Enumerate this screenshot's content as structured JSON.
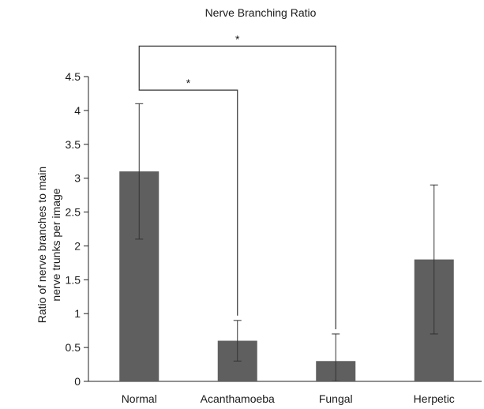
{
  "chart_data": {
    "type": "bar",
    "title": "Nerve Branching Ratio",
    "ylabel_lines": [
      "Ratio of nerve branches to main",
      "nerve trunks per image"
    ],
    "xlabel": "",
    "categories": [
      "Normal",
      "Acanthamoeba",
      "Fungal",
      "Herpetic"
    ],
    "values": [
      3.1,
      0.6,
      0.3,
      1.8
    ],
    "error": [
      1.0,
      0.3,
      0.4,
      1.1
    ],
    "ylim": [
      0,
      4.5
    ],
    "yticks": [
      "0",
      "0.5",
      "1",
      "1.5",
      "2",
      "2.5",
      "3",
      "3.5",
      "4",
      "4.5"
    ],
    "grid": false,
    "bar_color": "#5f5f5f",
    "significance": [
      {
        "from": "Normal",
        "to": "Acanthamoeba",
        "label": "*"
      },
      {
        "from": "Normal",
        "to": "Fungal",
        "label": "*"
      }
    ]
  }
}
